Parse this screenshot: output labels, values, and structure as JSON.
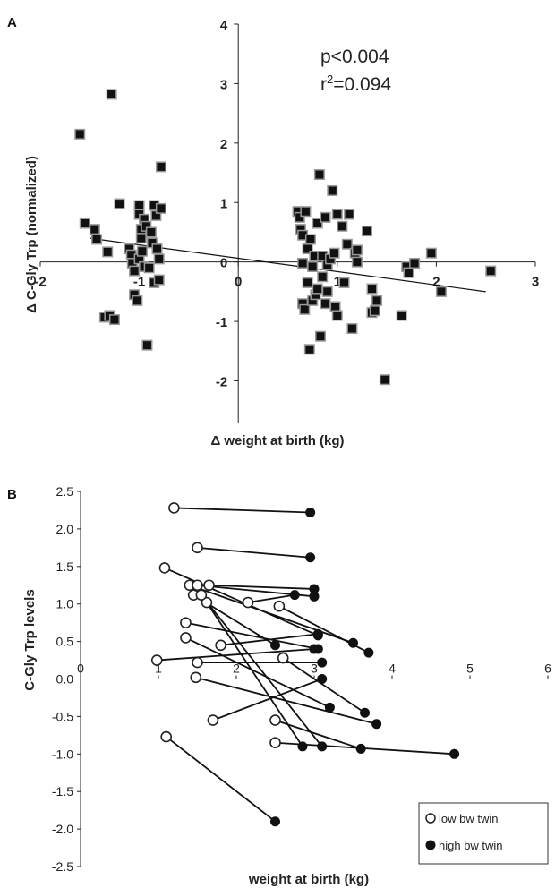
{
  "chart_data": [
    {
      "panel": "A",
      "type": "scatter",
      "xlabel": "Δ weight at birth (kg)",
      "ylabel": "Δ C-Gly Trp (normalized)",
      "xlim": [
        -2,
        3
      ],
      "ylim": [
        -2.7,
        4
      ],
      "xticks": [
        "-2",
        "-1",
        "0",
        "1",
        "2",
        "3"
      ],
      "yticks": [
        "4",
        "3",
        "2",
        "1",
        "0",
        "-1",
        "-2"
      ],
      "annotations": [
        "p<0.004",
        "0.094"
      ],
      "annotation_prefix": "r",
      "annotation_sup": "2",
      "annotation_eq": "=",
      "trendline": [
        [
          -1.5,
          0.4
        ],
        [
          2.5,
          -0.5
        ]
      ],
      "points": [
        [
          -1.6,
          2.15
        ],
        [
          -1.55,
          0.65
        ],
        [
          -1.45,
          0.55
        ],
        [
          -1.43,
          0.38
        ],
        [
          -1.32,
          0.17
        ],
        [
          -1.28,
          2.82
        ],
        [
          -1.35,
          -0.93
        ],
        [
          -1.3,
          -0.9
        ],
        [
          -1.25,
          -0.97
        ],
        [
          -1.2,
          0.98
        ],
        [
          -1.1,
          0.22
        ],
        [
          -1.08,
          0.12
        ],
        [
          -1.07,
          -0.02
        ],
        [
          -1.05,
          -0.15
        ],
        [
          -1.05,
          -0.55
        ],
        [
          -1.02,
          -0.65
        ],
        [
          -1.0,
          0.95
        ],
        [
          -1.0,
          0.8
        ],
        [
          -1.0,
          0.05
        ],
        [
          -0.98,
          0.55
        ],
        [
          -0.98,
          0.4
        ],
        [
          -0.97,
          0.18
        ],
        [
          -0.95,
          -0.08
        ],
        [
          -0.95,
          0.72
        ],
        [
          -0.93,
          0.6
        ],
        [
          -0.92,
          -1.4
        ],
        [
          -0.9,
          -0.1
        ],
        [
          -0.88,
          0.5
        ],
        [
          -0.87,
          0.32
        ],
        [
          -0.85,
          0.95
        ],
        [
          -0.85,
          -0.35
        ],
        [
          -0.83,
          0.78
        ],
        [
          -0.82,
          0.22
        ],
        [
          -0.8,
          0.05
        ],
        [
          -0.8,
          -0.3
        ],
        [
          -0.78,
          1.6
        ],
        [
          -0.78,
          0.9
        ],
        [
          0.6,
          0.85
        ],
        [
          0.62,
          0.75
        ],
        [
          0.63,
          0.55
        ],
        [
          0.65,
          0.45
        ],
        [
          0.65,
          -0.02
        ],
        [
          0.65,
          -0.7
        ],
        [
          0.67,
          -0.8
        ],
        [
          0.68,
          0.85
        ],
        [
          0.7,
          0.22
        ],
        [
          0.7,
          -0.35
        ],
        [
          0.72,
          -1.47
        ],
        [
          0.73,
          0.38
        ],
        [
          0.75,
          -0.08
        ],
        [
          0.75,
          -0.65
        ],
        [
          0.77,
          0.1
        ],
        [
          0.78,
          -0.55
        ],
        [
          0.8,
          0.65
        ],
        [
          0.8,
          -0.45
        ],
        [
          0.82,
          1.47
        ],
        [
          0.83,
          -1.25
        ],
        [
          0.85,
          0.1
        ],
        [
          0.85,
          -0.25
        ],
        [
          0.88,
          0.75
        ],
        [
          0.88,
          -0.7
        ],
        [
          0.9,
          -0.05
        ],
        [
          0.9,
          -0.5
        ],
        [
          0.93,
          0.05
        ],
        [
          0.95,
          1.2
        ],
        [
          0.97,
          0.15
        ],
        [
          0.98,
          -0.75
        ],
        [
          1.0,
          0.8
        ],
        [
          1.0,
          -0.9
        ],
        [
          1.05,
          0.6
        ],
        [
          1.07,
          -0.35
        ],
        [
          1.1,
          0.3
        ],
        [
          1.12,
          0.8
        ],
        [
          1.15,
          -1.12
        ],
        [
          1.18,
          0.15
        ],
        [
          1.2,
          0.2
        ],
        [
          1.2,
          0.0
        ],
        [
          1.3,
          0.52
        ],
        [
          1.35,
          -0.45
        ],
        [
          1.35,
          -0.85
        ],
        [
          1.38,
          -0.82
        ],
        [
          1.4,
          -0.65
        ],
        [
          1.48,
          -1.98
        ],
        [
          1.65,
          -0.9
        ],
        [
          1.7,
          -0.08
        ],
        [
          1.72,
          -0.18
        ],
        [
          1.78,
          -0.02
        ],
        [
          1.95,
          0.15
        ],
        [
          2.05,
          -0.5
        ],
        [
          2.55,
          -0.15
        ]
      ]
    },
    {
      "panel": "B",
      "type": "scatter",
      "xlabel": "weight at birth (kg)",
      "ylabel": "C-Gly Trp  levels",
      "xlim": [
        0,
        6
      ],
      "ylim": [
        -2.5,
        2.5
      ],
      "xticks": [
        "0",
        "1",
        "2",
        "3",
        "4",
        "5",
        "6"
      ],
      "yticks": [
        "2.5",
        "2.0",
        "1.5",
        "1.0",
        "0.5",
        "0.0",
        "-0.5",
        "-1.0",
        "-1.5",
        "-2.0",
        "-2.5"
      ],
      "legend_position": "bottom-right",
      "series": [
        {
          "name": "low bw twin",
          "marker": "open-circle"
        },
        {
          "name": "high bw twin",
          "marker": "filled-circle"
        }
      ],
      "pairs": [
        [
          [
            1.2,
            2.28
          ],
          [
            2.95,
            2.22
          ]
        ],
        [
          [
            1.5,
            1.75
          ],
          [
            2.95,
            1.62
          ]
        ],
        [
          [
            1.08,
            1.48
          ],
          [
            3.05,
            0.58
          ]
        ],
        [
          [
            1.4,
            1.25
          ],
          [
            3.5,
            0.48
          ]
        ],
        [
          [
            1.5,
            1.25
          ],
          [
            3.0,
            1.1
          ]
        ],
        [
          [
            1.65,
            1.25
          ],
          [
            3.0,
            1.2
          ]
        ],
        [
          [
            1.45,
            1.12
          ],
          [
            2.5,
            0.45
          ]
        ],
        [
          [
            2.15,
            1.02
          ],
          [
            2.75,
            1.12
          ]
        ],
        [
          [
            2.55,
            0.97
          ],
          [
            3.7,
            0.35
          ]
        ],
        [
          [
            1.35,
            0.75
          ],
          [
            3.05,
            0.4
          ]
        ],
        [
          [
            1.35,
            0.55
          ],
          [
            3.2,
            -0.38
          ]
        ],
        [
          [
            1.8,
            0.45
          ],
          [
            3.05,
            0.6
          ]
        ],
        [
          [
            0.98,
            0.25
          ],
          [
            3.0,
            0.4
          ]
        ],
        [
          [
            1.5,
            0.22
          ],
          [
            3.1,
            0.22
          ]
        ],
        [
          [
            1.48,
            0.02
          ],
          [
            3.8,
            -0.6
          ]
        ],
        [
          [
            2.6,
            0.28
          ],
          [
            3.65,
            -0.45
          ]
        ],
        [
          [
            1.7,
            -0.55
          ],
          [
            3.1,
            0.0
          ]
        ],
        [
          [
            2.5,
            -0.55
          ],
          [
            3.6,
            -0.93
          ]
        ],
        [
          [
            2.5,
            -0.85
          ],
          [
            4.8,
            -1.0
          ]
        ],
        [
          [
            1.1,
            -0.77
          ],
          [
            2.5,
            -1.9
          ]
        ],
        [
          [
            1.62,
            1.02
          ],
          [
            2.85,
            -0.9
          ]
        ],
        [
          [
            1.55,
            1.12
          ],
          [
            3.1,
            -0.9
          ]
        ]
      ]
    }
  ],
  "panel_labels": {
    "a": "A",
    "b": "B"
  }
}
